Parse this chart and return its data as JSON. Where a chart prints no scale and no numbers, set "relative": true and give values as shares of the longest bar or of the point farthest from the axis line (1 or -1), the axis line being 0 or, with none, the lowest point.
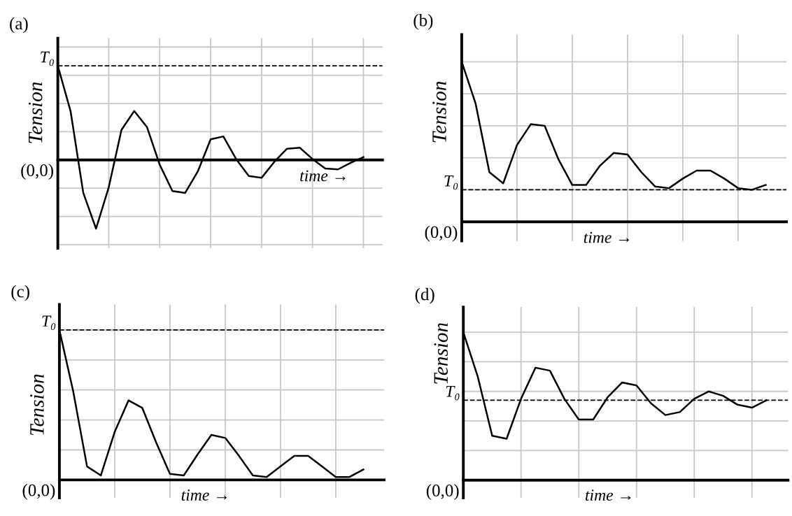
{
  "chart_data": [
    {
      "type": "line",
      "title": "(a)",
      "ylabel": "Tension",
      "relative": true,
      "grid": true,
      "line_style": "solid",
      "annotations": [
        "(0,0)",
        "time →"
      ],
      "categories": [
        null,
        null,
        null,
        null,
        null,
        null,
        null,
        null,
        null,
        null,
        null,
        null,
        null,
        null,
        null,
        null,
        null,
        null,
        null,
        null,
        null,
        null,
        null,
        null,
        null
      ],
      "series": [
        {
          "color": "#000000",
          "values": [
            1.0,
            0.52,
            -0.35,
            -0.73,
            -0.29,
            0.32,
            0.52,
            0.35,
            -0.05,
            -0.33,
            -0.35,
            -0.12,
            0.22,
            0.25,
            0.01,
            -0.17,
            -0.19,
            -0.02,
            0.12,
            0.13,
            0.01,
            -0.09,
            -0.1,
            -0.03,
            0.03
          ]
        }
      ],
      "ref_lines": [
        {
          "axis": "y",
          "value": 1.0,
          "label": "T₀",
          "color": "#000000",
          "line_style": "dashed"
        }
      ]
    },
    {
      "type": "line",
      "title": "(b)",
      "ylabel": "Tension",
      "relative": true,
      "grid": true,
      "line_style": "solid",
      "annotations": [
        "(0,0)",
        "time →"
      ],
      "categories": [
        null,
        null,
        null,
        null,
        null,
        null,
        null,
        null,
        null,
        null,
        null,
        null,
        null,
        null,
        null,
        null,
        null,
        null,
        null,
        null,
        null,
        null,
        null
      ],
      "series": [
        {
          "color": "#000000",
          "values": [
            1.0,
            0.74,
            0.31,
            0.24,
            0.48,
            0.61,
            0.6,
            0.39,
            0.23,
            0.23,
            0.35,
            0.43,
            0.42,
            0.31,
            0.22,
            0.21,
            0.27,
            0.32,
            0.32,
            0.27,
            0.21,
            0.2,
            0.23
          ]
        }
      ],
      "ref_lines": [
        {
          "axis": "y",
          "value": 0.2,
          "label": "T₀",
          "color": "#000000",
          "line_style": "dashed"
        }
      ]
    },
    {
      "type": "line",
      "title": "(c)",
      "ylabel": "Tension",
      "relative": true,
      "grid": true,
      "line_style": "solid",
      "annotations": [
        "(0,0)",
        "time →"
      ],
      "categories": [
        null,
        null,
        null,
        null,
        null,
        null,
        null,
        null,
        null,
        null,
        null,
        null,
        null,
        null,
        null,
        null,
        null,
        null,
        null,
        null,
        null,
        null,
        null
      ],
      "series": [
        {
          "color": "#000000",
          "values": [
            1.0,
            0.59,
            0.09,
            0.03,
            0.32,
            0.53,
            0.48,
            0.25,
            0.04,
            0.03,
            0.17,
            0.3,
            0.28,
            0.16,
            0.03,
            0.02,
            0.09,
            0.16,
            0.16,
            0.09,
            0.02,
            0.02,
            0.07
          ]
        }
      ],
      "ref_lines": [
        {
          "axis": "y",
          "value": 1.0,
          "label": "T₀",
          "color": "#000000",
          "line_style": "dashed"
        }
      ]
    },
    {
      "type": "line",
      "title": "(d)",
      "ylabel": "Tension",
      "relative": true,
      "grid": true,
      "line_style": "solid",
      "annotations": [
        "(0,0)",
        "time →"
      ],
      "categories": [
        null,
        null,
        null,
        null,
        null,
        null,
        null,
        null,
        null,
        null,
        null,
        null,
        null,
        null,
        null,
        null,
        null,
        null,
        null,
        null,
        null,
        null
      ],
      "series": [
        {
          "color": "#000000",
          "values": [
            1.0,
            0.7,
            0.3,
            0.28,
            0.55,
            0.76,
            0.74,
            0.55,
            0.41,
            0.41,
            0.56,
            0.66,
            0.64,
            0.52,
            0.44,
            0.46,
            0.55,
            0.6,
            0.57,
            0.51,
            0.49,
            0.54
          ]
        }
      ],
      "ref_lines": [
        {
          "axis": "y",
          "value": 0.54,
          "label": "T₀",
          "color": "#000000",
          "line_style": "dashed"
        }
      ]
    }
  ]
}
